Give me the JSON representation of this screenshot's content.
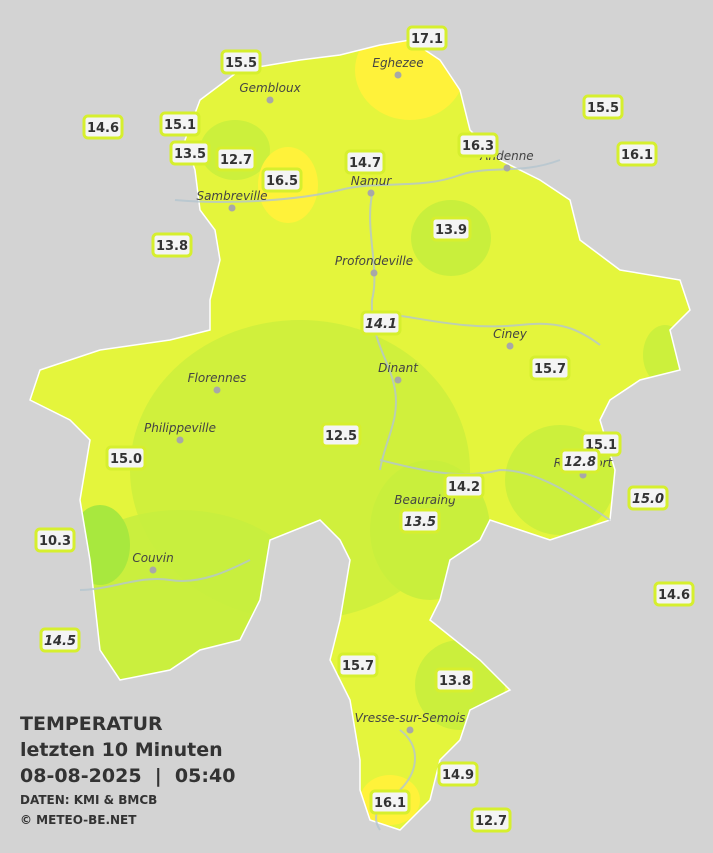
{
  "header": {
    "title": "TEMPERATUR",
    "subtitle": "letzten 10 Minuten",
    "datetime": "08-08-2025  |  05:40",
    "source": "DATEN: KMI & BMCB",
    "copyright": "© METEO-BE.NET"
  },
  "cities": [
    "Eghezee",
    "Gembloux",
    "Andenne",
    "Namur",
    "Sambreville",
    "Profondeville",
    "Ciney",
    "Dinant",
    "Florennes",
    "Philippeville",
    "Rochefort",
    "Beauraing",
    "Couvin",
    "Vresse-sur-Semois"
  ],
  "stations": [
    {
      "value": 17.1
    },
    {
      "value": 15.5
    },
    {
      "value": 15.5
    },
    {
      "value": 14.6
    },
    {
      "value": 15.1
    },
    {
      "value": 13.5
    },
    {
      "value": 12.7
    },
    {
      "value": 16.3
    },
    {
      "value": 16.1
    },
    {
      "value": 14.7
    },
    {
      "value": 16.5
    },
    {
      "value": 13.9
    },
    {
      "value": 13.8
    },
    {
      "value": 14.1,
      "italic": true
    },
    {
      "value": 15.7
    },
    {
      "value": 12.5
    },
    {
      "value": 15.1
    },
    {
      "value": 15.0
    },
    {
      "value": 12.8,
      "italic": true
    },
    {
      "value": 14.2
    },
    {
      "value": 15.0,
      "italic": true
    },
    {
      "value": 13.5,
      "italic": true
    },
    {
      "value": 10.3
    },
    {
      "value": 14.6
    },
    {
      "value": 14.5,
      "italic": true
    },
    {
      "value": 15.7
    },
    {
      "value": 13.8
    },
    {
      "value": 14.9
    },
    {
      "value": 16.1
    },
    {
      "value": 12.7
    }
  ]
}
